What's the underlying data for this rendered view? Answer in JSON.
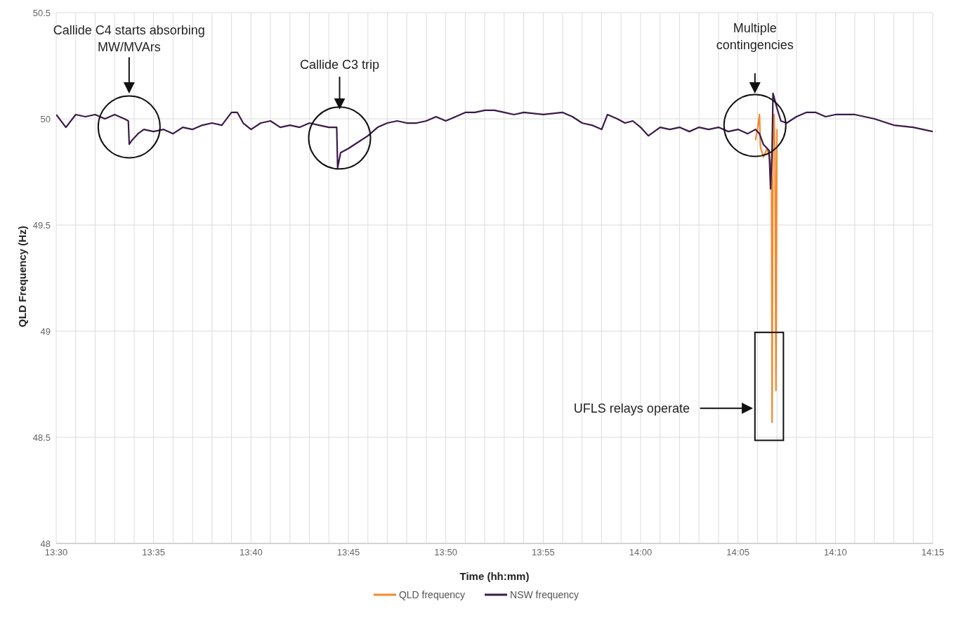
{
  "chart_data": {
    "type": "line",
    "xlabel": "Time (hh:mm)",
    "ylabel": "QLD Frequency (Hz)",
    "xlim": [
      13.5,
      14.25
    ],
    "ylim": [
      48,
      50.5
    ],
    "xticks": [
      {
        "value": 13.5,
        "label": "13:30"
      },
      {
        "value": 13.5167,
        "label": null
      },
      {
        "value": 13.5333,
        "label": null
      },
      {
        "value": 13.55,
        "label": null
      },
      {
        "value": 13.5667,
        "label": null
      },
      {
        "value": 13.5833,
        "label": "13:35"
      },
      {
        "value": 13.6,
        "label": null
      },
      {
        "value": 13.6167,
        "label": null
      },
      {
        "value": 13.6333,
        "label": null
      },
      {
        "value": 13.65,
        "label": null
      },
      {
        "value": 13.6667,
        "label": "13:40"
      },
      {
        "value": 13.6833,
        "label": null
      },
      {
        "value": 13.7,
        "label": null
      },
      {
        "value": 13.7167,
        "label": null
      },
      {
        "value": 13.7333,
        "label": null
      },
      {
        "value": 13.75,
        "label": "13:45"
      },
      {
        "value": 13.7667,
        "label": null
      },
      {
        "value": 13.7833,
        "label": null
      },
      {
        "value": 13.8,
        "label": null
      },
      {
        "value": 13.8167,
        "label": null
      },
      {
        "value": 13.8333,
        "label": "13:50"
      },
      {
        "value": 13.85,
        "label": null
      },
      {
        "value": 13.8667,
        "label": null
      },
      {
        "value": 13.8833,
        "label": null
      },
      {
        "value": 13.9,
        "label": null
      },
      {
        "value": 13.9167,
        "label": "13:55"
      },
      {
        "value": 13.9333,
        "label": null
      },
      {
        "value": 13.95,
        "label": null
      },
      {
        "value": 13.9667,
        "label": null
      },
      {
        "value": 13.9833,
        "label": null
      },
      {
        "value": 14,
        "label": "14:00"
      },
      {
        "value": 14.0167,
        "label": null
      },
      {
        "value": 14.0333,
        "label": null
      },
      {
        "value": 14.05,
        "label": null
      },
      {
        "value": 14.0667,
        "label": null
      },
      {
        "value": 14.0833,
        "label": "14:05"
      },
      {
        "value": 14.1,
        "label": null
      },
      {
        "value": 14.1167,
        "label": null
      },
      {
        "value": 14.1333,
        "label": null
      },
      {
        "value": 14.15,
        "label": null
      },
      {
        "value": 14.1667,
        "label": "14:10"
      },
      {
        "value": 14.1833,
        "label": null
      },
      {
        "value": 14.2,
        "label": null
      },
      {
        "value": 14.2167,
        "label": null
      },
      {
        "value": 14.2333,
        "label": null
      },
      {
        "value": 14.25,
        "label": "14:15"
      }
    ],
    "yticks": [
      48,
      48.5,
      49,
      49.5,
      50,
      50.5
    ],
    "grid": true,
    "legend": "bottom",
    "marker": "none",
    "line_style": "solid",
    "series": [
      {
        "name": "QLD frequency",
        "color": "#f28a2e",
        "x": [
          14.0983,
          14.1,
          14.1017,
          14.1025,
          14.105,
          14.1083,
          14.1108,
          14.112,
          14.1125,
          14.1133,
          14.1142,
          14.115,
          14.1158,
          14.1167
        ],
        "values": [
          49.9,
          49.95,
          50.02,
          49.87,
          49.82,
          49.86,
          49.8,
          49.7,
          48.57,
          49.9,
          50.02,
          49.83,
          48.72,
          49.95
        ]
      },
      {
        "name": "NSW frequency",
        "color": "#3b1a4a",
        "x": [
          13.5,
          13.5083,
          13.5167,
          13.525,
          13.5333,
          13.5417,
          13.55,
          13.5583,
          13.5617,
          13.5625,
          13.565,
          13.57,
          13.575,
          13.5833,
          13.5917,
          13.6,
          13.6083,
          13.6167,
          13.625,
          13.6333,
          13.6417,
          13.65,
          13.655,
          13.66,
          13.6667,
          13.675,
          13.6833,
          13.6917,
          13.7,
          13.7083,
          13.7167,
          13.725,
          13.7333,
          13.74,
          13.7408,
          13.7433,
          13.75,
          13.7583,
          13.7667,
          13.775,
          13.7833,
          13.7917,
          13.8,
          13.8083,
          13.8167,
          13.825,
          13.8333,
          13.8417,
          13.85,
          13.8583,
          13.8667,
          13.875,
          13.8833,
          13.8917,
          13.9,
          13.9167,
          13.9333,
          13.9417,
          13.95,
          13.9583,
          13.9667,
          13.9717,
          13.98,
          13.9867,
          13.9933,
          14,
          14.0067,
          14.0167,
          14.025,
          14.0333,
          14.0417,
          14.05,
          14.0583,
          14.0667,
          14.075,
          14.0833,
          14.0917,
          14.0983,
          14.1017,
          14.105,
          14.11,
          14.1112,
          14.1125,
          14.1133,
          14.1167,
          14.12,
          14.125,
          14.1333,
          14.1417,
          14.15,
          14.1583,
          14.1667,
          14.1833,
          14.2,
          14.2167,
          14.2333,
          14.25
        ],
        "values": [
          50.02,
          49.96,
          50.02,
          50.01,
          50.02,
          50,
          50.02,
          50,
          49.99,
          49.88,
          49.9,
          49.93,
          49.95,
          49.94,
          49.95,
          49.93,
          49.96,
          49.95,
          49.97,
          49.98,
          49.97,
          50.03,
          50.03,
          49.98,
          49.95,
          49.98,
          49.99,
          49.96,
          49.97,
          49.96,
          49.98,
          49.97,
          49.96,
          49.96,
          49.77,
          49.84,
          49.86,
          49.89,
          49.92,
          49.96,
          49.98,
          49.99,
          49.98,
          49.98,
          49.99,
          50.01,
          49.99,
          50.01,
          50.03,
          50.03,
          50.04,
          50.04,
          50.03,
          50.02,
          50.03,
          50.02,
          50.03,
          50.01,
          49.98,
          49.97,
          49.95,
          50.02,
          50,
          49.98,
          49.99,
          49.96,
          49.92,
          49.96,
          49.95,
          49.96,
          49.94,
          49.96,
          49.95,
          49.96,
          49.94,
          49.95,
          49.93,
          49.95,
          49.93,
          49.88,
          49.85,
          49.67,
          49.85,
          50.12,
          50.05,
          49.99,
          49.98,
          50.01,
          50.03,
          50.03,
          50.01,
          50.02,
          50.02,
          50,
          49.97,
          49.96,
          49.94
        ]
      }
    ],
    "annotations": [
      "Callide C4 starts absorbing MW/MVArs",
      "Callide C3 trip",
      "Multiple contingencies",
      "UFLS relays operate"
    ]
  }
}
